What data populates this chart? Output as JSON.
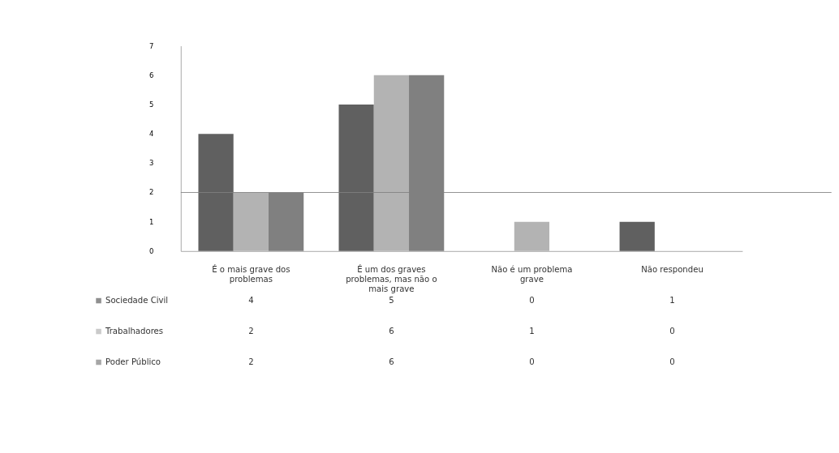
{
  "chart_data": {
    "type": "bar",
    "categories": [
      "É o mais grave dos problemas",
      "É um dos graves problemas, mas não o mais grave",
      "Não é um problema grave",
      "Não respondeu"
    ],
    "series": [
      {
        "name": "Sociedade Civil",
        "color": "#606060",
        "values": [
          4,
          5,
          0,
          1
        ]
      },
      {
        "name": "Trabalhadores",
        "color": "#b3b3b3",
        "values": [
          2,
          6,
          1,
          0
        ]
      },
      {
        "name": "Poder Público",
        "color": "#808080",
        "values": [
          2,
          6,
          0,
          0
        ]
      }
    ],
    "ylim": [
      0,
      7
    ],
    "yticks": [
      0,
      1,
      2,
      3,
      4,
      5,
      6,
      7
    ],
    "grid": false,
    "legend": "bottom",
    "data_labels": true,
    "ref_lines": [
      {
        "axis": "y",
        "value": 2,
        "color": "#808080"
      }
    ]
  }
}
